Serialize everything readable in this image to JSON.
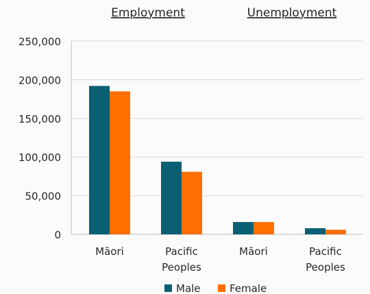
{
  "chart_data": {
    "type": "bar",
    "group_headers": [
      "Employment",
      "Unemployment"
    ],
    "categories": [
      "Māori",
      "Pacific Peoples",
      "Māori",
      "Pacific Peoples"
    ],
    "category_lines": [
      [
        "Māori"
      ],
      [
        "Pacific",
        "Peoples"
      ],
      [
        "Māori"
      ],
      [
        "Pacific",
        "Peoples"
      ]
    ],
    "series": [
      {
        "name": "Male",
        "values": [
          192000,
          94000,
          16000,
          8000
        ]
      },
      {
        "name": "Female",
        "values": [
          185000,
          81000,
          16000,
          6000
        ]
      }
    ],
    "y_ticks": [
      "0",
      "50,000",
      "100,000",
      "150,000",
      "200,000",
      "250,000"
    ],
    "ylim": [
      0,
      250000
    ],
    "grid": true,
    "legend_position": "bottom-center",
    "colors": {
      "Male": "#0b5f73",
      "Female": "#ff6f00",
      "grid": "#d9d9d9",
      "axis": "#bfbfbf",
      "text": "#262626"
    }
  }
}
